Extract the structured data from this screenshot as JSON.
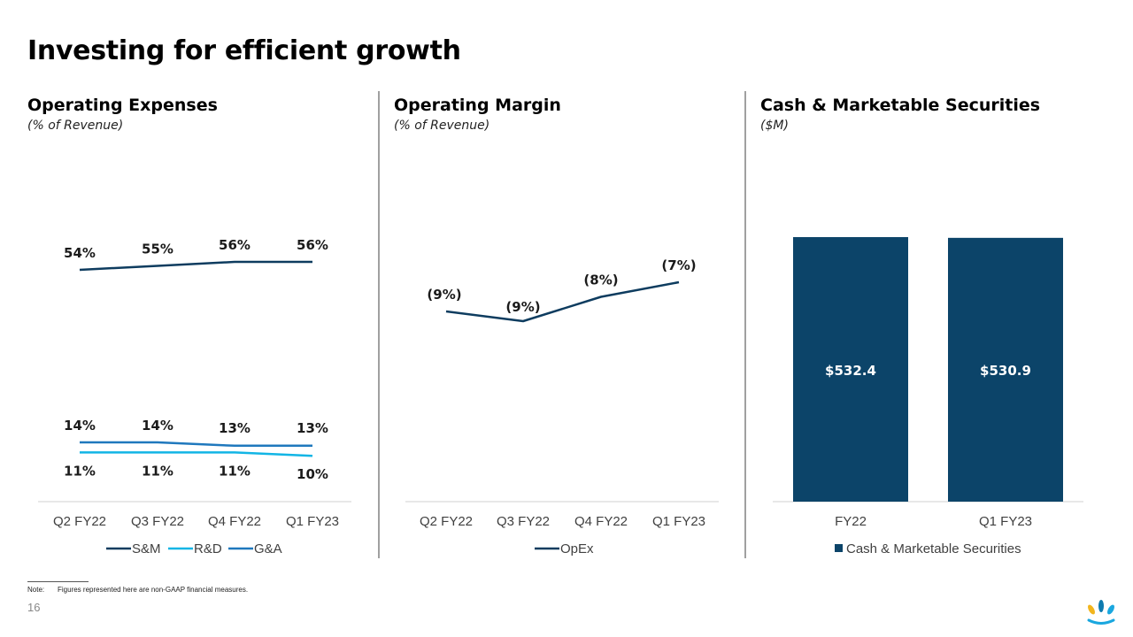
{
  "slide": {
    "title": "Investing for efficient growth",
    "page_number": "16",
    "note_label": "Note:",
    "note_text": "Figures represented here are non-GAAP financial measures.",
    "logo_icon": "brand-splash-logo"
  },
  "colors": {
    "sm": "#0e3c5f",
    "rd": "#12b5e5",
    "ga": "#1f78bd",
    "opex": "#0e3c5f",
    "bar": "#0c4469",
    "logo_yellow": "#f2b51d",
    "logo_blue": "#1aa7df",
    "logo_teal": "#0e7bb0"
  },
  "panels": [
    {
      "title": "Operating Expenses",
      "subtitle": "(% of Revenue)"
    },
    {
      "title": "Operating Margin",
      "subtitle": "(% of Revenue)"
    },
    {
      "title": "Cash & Marketable Securities",
      "subtitle": "($M)"
    }
  ],
  "chart_data": [
    {
      "type": "line",
      "title": "Operating Expenses",
      "subtitle": "(% of Revenue)",
      "categories": [
        "Q2 FY22",
        "Q3 FY22",
        "Q4 FY22",
        "Q1 FY23"
      ],
      "series": [
        {
          "name": "S&M",
          "values": [
            54,
            55,
            56,
            56
          ],
          "labels": [
            "54%",
            "55%",
            "56%",
            "56%"
          ]
        },
        {
          "name": "R&D",
          "values": [
            11,
            11,
            11,
            10
          ],
          "labels": [
            "11%",
            "11%",
            "11%",
            "10%"
          ]
        },
        {
          "name": "G&A",
          "values": [
            14,
            14,
            13,
            13
          ],
          "labels": [
            "14%",
            "14%",
            "13%",
            "13%"
          ]
        }
      ],
      "legend": "bottom",
      "grid": false
    },
    {
      "type": "line",
      "title": "Operating Margin",
      "subtitle": "(% of Revenue)",
      "categories": [
        "Q2 FY22",
        "Q3 FY22",
        "Q4 FY22",
        "Q1 FY23"
      ],
      "series": [
        {
          "name": "OpEx",
          "values": [
            -9,
            -9,
            -8,
            -7
          ],
          "labels": [
            "(9%)",
            "(9%)",
            "(8%)",
            "(7%)"
          ]
        }
      ],
      "legend": "bottom",
      "grid": false
    },
    {
      "type": "bar",
      "title": "Cash & Marketable Securities",
      "subtitle": "($M)",
      "categories": [
        "FY22",
        "Q1 FY23"
      ],
      "series": [
        {
          "name": "Cash & Marketable Securities",
          "values": [
            532.4,
            530.9
          ],
          "labels": [
            "$532.4",
            "$530.9"
          ]
        }
      ],
      "legend": "bottom",
      "grid": false
    }
  ]
}
